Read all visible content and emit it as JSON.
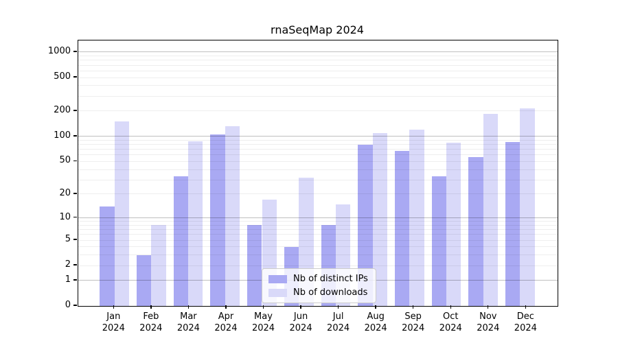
{
  "chart_data": {
    "type": "bar",
    "title": "rnaSeqMap 2024",
    "x_axis": {
      "categories": [
        "Jan 2024",
        "Feb 2024",
        "Mar 2024",
        "Apr 2024",
        "May 2024",
        "Jun 2024",
        "Jul 2024",
        "Aug 2024",
        "Sep 2024",
        "Oct 2024",
        "Nov 2024",
        "Dec 2024"
      ],
      "tick_labels_two_lines": true
    },
    "y_axis": {
      "scale": "log10(value+1)",
      "ticks": [
        0,
        1,
        2,
        5,
        10,
        20,
        50,
        100,
        200,
        500,
        1000
      ],
      "top_value": 1373,
      "major_gridlines": [
        1,
        10,
        100,
        1000
      ],
      "minor_gridlines_rule": "2-9 within each decade"
    },
    "series": [
      {
        "name": "Nb of distinct IPs",
        "color": "#a9a9f3",
        "values": [
          14,
          3,
          33,
          105,
          8,
          4,
          8,
          80,
          67,
          33,
          57,
          86
        ]
      },
      {
        "name": "Nb of downloads",
        "color": "#d9d9f9",
        "values": [
          150,
          8,
          88,
          132,
          17,
          32,
          15,
          110,
          120,
          84,
          185,
          216
        ]
      }
    ],
    "legend": {
      "position": "inside-bottom-center",
      "items": [
        "Nb of distinct IPs",
        "Nb of downloads"
      ]
    },
    "grid": true,
    "background_color": "#ffffff"
  }
}
